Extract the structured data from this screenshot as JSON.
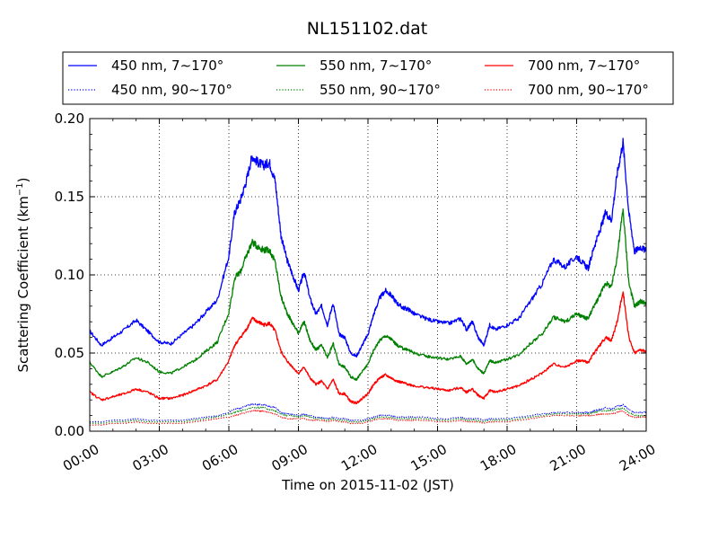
{
  "chart_data": {
    "type": "line",
    "title": "NL151102.dat",
    "xlabel": "Time on 2015-11-02 (JST)",
    "ylabel": "Scattering Coefficient (km",
    "ylabel_sup": "−1",
    "ylabel_end": ")",
    "xlim": [
      0,
      24
    ],
    "ylim": [
      0,
      0.2
    ],
    "x_tick_values": [
      0,
      3,
      6,
      9,
      12,
      15,
      18,
      21,
      24
    ],
    "x_tick_labels": [
      "00:00",
      "03:00",
      "06:00",
      "09:00",
      "12:00",
      "15:00",
      "18:00",
      "21:00",
      "24:00"
    ],
    "y_tick_values": [
      0,
      0.05,
      0.1,
      0.15,
      0.2
    ],
    "y_tick_labels": [
      "0.00",
      "0.05",
      "0.10",
      "0.15",
      "0.20"
    ],
    "grid": true,
    "legend_position": "top, above plot",
    "x": [
      0.0,
      0.5,
      1.0,
      1.5,
      2.0,
      2.5,
      3.0,
      3.5,
      4.0,
      4.5,
      5.0,
      5.5,
      6.0,
      6.25,
      6.5,
      6.75,
      7.0,
      7.25,
      7.5,
      7.75,
      8.0,
      8.25,
      8.5,
      8.75,
      9.0,
      9.25,
      9.5,
      9.75,
      10.0,
      10.25,
      10.5,
      10.75,
      11.0,
      11.25,
      11.5,
      11.75,
      12.0,
      12.25,
      12.5,
      12.75,
      13.0,
      13.25,
      13.5,
      13.75,
      14.0,
      14.5,
      15.0,
      15.5,
      16.0,
      16.25,
      16.5,
      16.75,
      17.0,
      17.25,
      17.5,
      18.0,
      18.5,
      19.0,
      19.5,
      20.0,
      20.5,
      21.0,
      21.25,
      21.5,
      21.75,
      22.0,
      22.25,
      22.5,
      22.75,
      23.0,
      23.25,
      23.5,
      23.75,
      24.0
    ],
    "series": [
      {
        "name": "450 nm, 7∼170°",
        "style": "solid",
        "color": "#0000ff",
        "values": [
          0.064,
          0.055,
          0.06,
          0.065,
          0.071,
          0.064,
          0.057,
          0.056,
          0.062,
          0.068,
          0.076,
          0.084,
          0.112,
          0.14,
          0.148,
          0.16,
          0.176,
          0.172,
          0.17,
          0.172,
          0.16,
          0.125,
          0.11,
          0.1,
          0.09,
          0.102,
          0.085,
          0.075,
          0.08,
          0.068,
          0.082,
          0.062,
          0.06,
          0.05,
          0.048,
          0.055,
          0.062,
          0.075,
          0.085,
          0.09,
          0.087,
          0.082,
          0.079,
          0.078,
          0.075,
          0.072,
          0.07,
          0.069,
          0.072,
          0.065,
          0.07,
          0.06,
          0.055,
          0.068,
          0.065,
          0.068,
          0.072,
          0.083,
          0.094,
          0.11,
          0.105,
          0.112,
          0.108,
          0.104,
          0.118,
          0.128,
          0.14,
          0.135,
          0.165,
          0.185,
          0.14,
          0.115,
          0.118,
          0.115
        ]
      },
      {
        "name": "550 nm, 7∼170°",
        "style": "solid",
        "color": "#008000",
        "values": [
          0.044,
          0.035,
          0.038,
          0.042,
          0.047,
          0.044,
          0.038,
          0.037,
          0.041,
          0.045,
          0.051,
          0.057,
          0.076,
          0.098,
          0.102,
          0.112,
          0.121,
          0.118,
          0.116,
          0.116,
          0.108,
          0.086,
          0.076,
          0.069,
          0.063,
          0.07,
          0.058,
          0.052,
          0.055,
          0.047,
          0.056,
          0.043,
          0.041,
          0.035,
          0.033,
          0.038,
          0.043,
          0.052,
          0.058,
          0.061,
          0.059,
          0.055,
          0.053,
          0.052,
          0.05,
          0.048,
          0.047,
          0.046,
          0.048,
          0.043,
          0.046,
          0.04,
          0.037,
          0.045,
          0.044,
          0.046,
          0.049,
          0.056,
          0.062,
          0.073,
          0.07,
          0.075,
          0.073,
          0.072,
          0.08,
          0.087,
          0.095,
          0.092,
          0.112,
          0.142,
          0.095,
          0.08,
          0.083,
          0.082
        ]
      },
      {
        "name": "700 nm, 7∼170°",
        "style": "solid",
        "color": "#ff0000",
        "values": [
          0.025,
          0.02,
          0.022,
          0.024,
          0.027,
          0.025,
          0.021,
          0.021,
          0.023,
          0.026,
          0.029,
          0.033,
          0.045,
          0.055,
          0.06,
          0.065,
          0.072,
          0.07,
          0.068,
          0.069,
          0.064,
          0.051,
          0.045,
          0.041,
          0.037,
          0.041,
          0.034,
          0.03,
          0.032,
          0.027,
          0.033,
          0.024,
          0.024,
          0.019,
          0.018,
          0.021,
          0.024,
          0.03,
          0.034,
          0.036,
          0.034,
          0.032,
          0.031,
          0.03,
          0.029,
          0.028,
          0.027,
          0.026,
          0.028,
          0.025,
          0.027,
          0.023,
          0.021,
          0.026,
          0.025,
          0.027,
          0.029,
          0.033,
          0.037,
          0.043,
          0.041,
          0.045,
          0.045,
          0.044,
          0.05,
          0.055,
          0.06,
          0.058,
          0.07,
          0.09,
          0.06,
          0.05,
          0.052,
          0.051
        ]
      },
      {
        "name": "450 nm, 90∼170°",
        "style": "dotted",
        "color": "#0000ff",
        "values": [
          0.006,
          0.006,
          0.007,
          0.007,
          0.008,
          0.007,
          0.007,
          0.007,
          0.007,
          0.008,
          0.009,
          0.01,
          0.012,
          0.014,
          0.015,
          0.016,
          0.017,
          0.017,
          0.017,
          0.016,
          0.015,
          0.012,
          0.011,
          0.011,
          0.01,
          0.011,
          0.01,
          0.009,
          0.009,
          0.008,
          0.009,
          0.008,
          0.008,
          0.007,
          0.007,
          0.007,
          0.008,
          0.009,
          0.01,
          0.01,
          0.01,
          0.009,
          0.009,
          0.009,
          0.009,
          0.009,
          0.008,
          0.008,
          0.009,
          0.008,
          0.008,
          0.008,
          0.007,
          0.008,
          0.008,
          0.008,
          0.009,
          0.01,
          0.011,
          0.012,
          0.012,
          0.012,
          0.012,
          0.012,
          0.013,
          0.014,
          0.015,
          0.014,
          0.016,
          0.017,
          0.014,
          0.012,
          0.012,
          0.012
        ]
      },
      {
        "name": "550 nm, 90∼170°",
        "style": "dotted",
        "color": "#008000",
        "values": [
          0.005,
          0.005,
          0.006,
          0.006,
          0.007,
          0.006,
          0.006,
          0.006,
          0.006,
          0.007,
          0.008,
          0.009,
          0.011,
          0.012,
          0.013,
          0.014,
          0.015,
          0.015,
          0.015,
          0.014,
          0.013,
          0.011,
          0.01,
          0.01,
          0.009,
          0.01,
          0.009,
          0.008,
          0.008,
          0.007,
          0.008,
          0.007,
          0.007,
          0.006,
          0.006,
          0.006,
          0.007,
          0.008,
          0.009,
          0.009,
          0.009,
          0.008,
          0.008,
          0.008,
          0.008,
          0.008,
          0.007,
          0.007,
          0.008,
          0.007,
          0.007,
          0.007,
          0.006,
          0.007,
          0.007,
          0.007,
          0.008,
          0.009,
          0.01,
          0.011,
          0.011,
          0.011,
          0.011,
          0.011,
          0.012,
          0.013,
          0.013,
          0.013,
          0.014,
          0.015,
          0.012,
          0.01,
          0.01,
          0.01
        ]
      },
      {
        "name": "700 nm, 90∼170°",
        "style": "dotted",
        "color": "#ff0000",
        "values": [
          0.004,
          0.004,
          0.005,
          0.005,
          0.006,
          0.005,
          0.005,
          0.005,
          0.005,
          0.006,
          0.007,
          0.008,
          0.009,
          0.01,
          0.011,
          0.012,
          0.013,
          0.013,
          0.013,
          0.012,
          0.011,
          0.009,
          0.008,
          0.008,
          0.008,
          0.008,
          0.007,
          0.007,
          0.007,
          0.006,
          0.007,
          0.006,
          0.006,
          0.005,
          0.005,
          0.005,
          0.006,
          0.007,
          0.008,
          0.008,
          0.008,
          0.007,
          0.007,
          0.007,
          0.007,
          0.007,
          0.006,
          0.006,
          0.007,
          0.006,
          0.006,
          0.006,
          0.005,
          0.006,
          0.006,
          0.006,
          0.007,
          0.008,
          0.009,
          0.01,
          0.01,
          0.01,
          0.01,
          0.01,
          0.01,
          0.011,
          0.011,
          0.011,
          0.012,
          0.013,
          0.01,
          0.009,
          0.009,
          0.009
        ]
      }
    ]
  }
}
